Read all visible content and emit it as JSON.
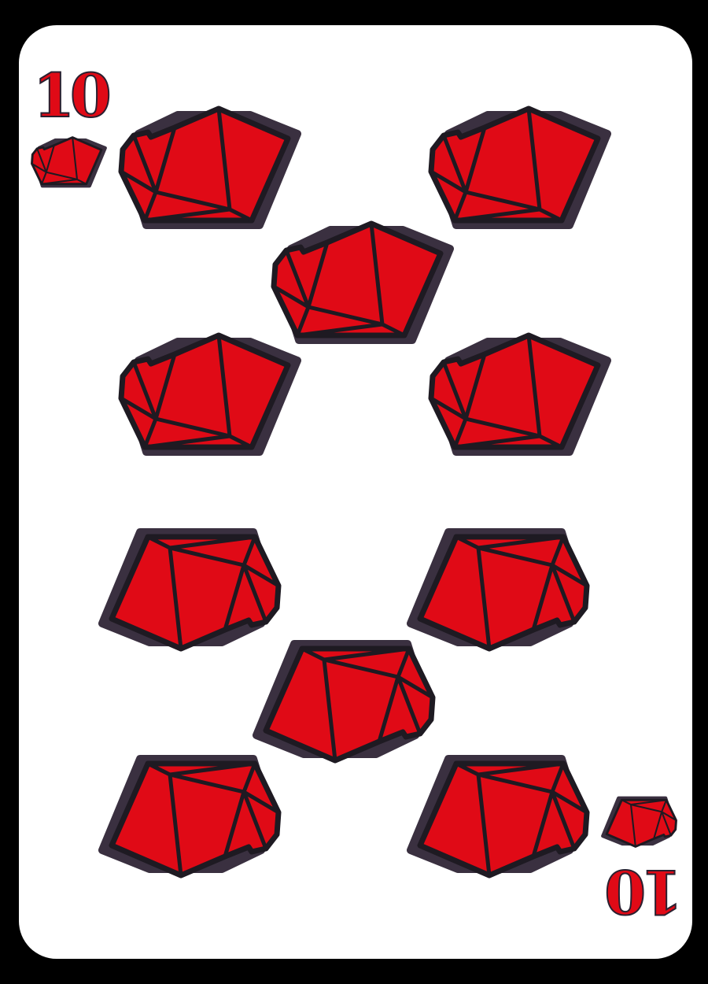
{
  "card": {
    "rank": "10",
    "suit_icon": "red-gem-icon",
    "colors": {
      "background": "#000000",
      "face": "#ffffff",
      "gem_fill": "#e00a16",
      "gem_outline": "#3a3040",
      "rank_fill": "#e00a16"
    }
  }
}
